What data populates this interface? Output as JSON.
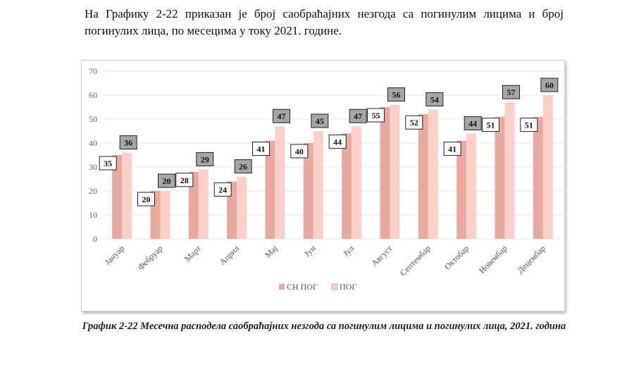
{
  "intro_text": "На Графику 2-22 приказан је број саобраћајних незгода са погинулим лицима и број погинулих лица, по месецима у току 2021. године.",
  "caption": "График 2-22 Месечна расподела саобраћајних незгода са погинулим лицима и погинулих лица, 2021. година",
  "chart_data": {
    "type": "bar",
    "categories": [
      "Јануар",
      "Фебруар",
      "Март",
      "Април",
      "Мај",
      "Јун",
      "Јул",
      "Август",
      "Септембар",
      "Октобар",
      "Новембар",
      "Децембар"
    ],
    "series": [
      {
        "name": "СН ПОГ",
        "values": [
          35,
          20,
          28,
          24,
          41,
          40,
          44,
          55,
          52,
          41,
          51,
          51
        ],
        "color": "#e8a9a0"
      },
      {
        "name": "ПОГ",
        "values": [
          36,
          20,
          29,
          26,
          47,
          45,
          47,
          56,
          54,
          44,
          57,
          60
        ],
        "color": "#fbd0c8"
      }
    ],
    "ylim": [
      0,
      70
    ],
    "yticks": [
      0,
      10,
      20,
      30,
      40,
      50,
      60,
      70
    ],
    "grid": true,
    "legend": "bottom"
  }
}
